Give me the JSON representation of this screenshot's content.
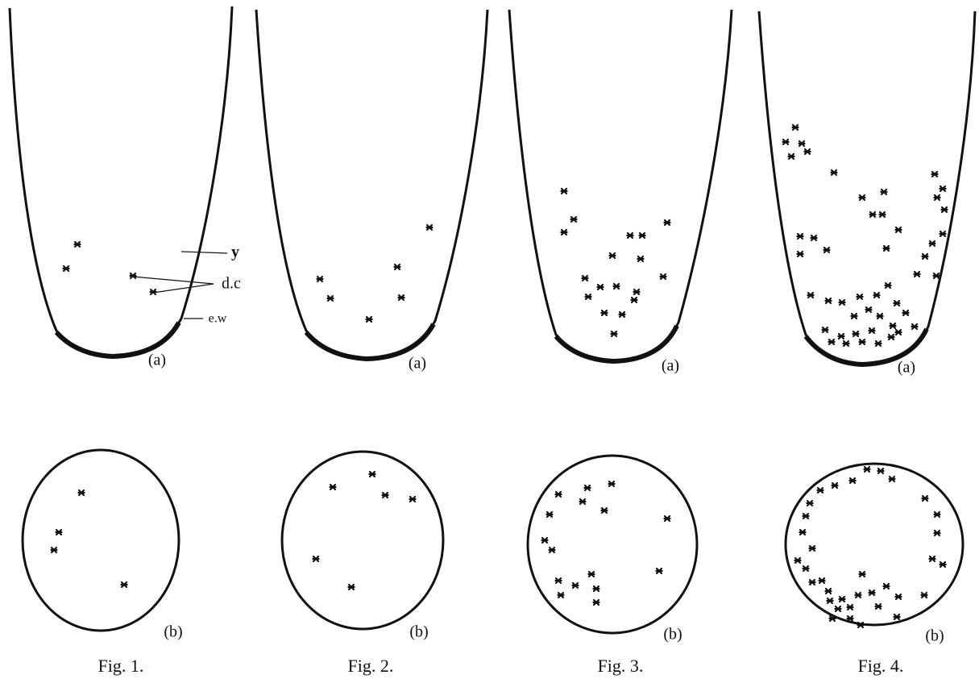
{
  "figures": [
    {
      "label_a": "(a)",
      "label_b": "(b)",
      "caption": "Fig. 1."
    },
    {
      "label_a": "(a)",
      "label_b": "(b)",
      "caption": "Fig. 2."
    },
    {
      "label_a": "(a)",
      "label_b": "(b)",
      "caption": "Fig. 3."
    },
    {
      "label_a": "(a)",
      "label_b": "(b)",
      "caption": "Fig. 4."
    }
  ],
  "annotations": {
    "y": "y",
    "dc": "d.c",
    "ew": "e.w"
  }
}
